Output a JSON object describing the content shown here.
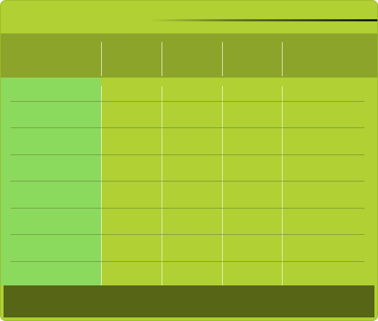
{
  "table": {
    "title": "",
    "column_headers": [
      "",
      "",
      "",
      "",
      ""
    ],
    "rows": [
      [
        "",
        "",
        "",
        "",
        ""
      ],
      [
        "",
        "",
        "",
        "",
        ""
      ],
      [
        "",
        "",
        "",
        "",
        ""
      ],
      [
        "",
        "",
        "",
        "",
        ""
      ],
      [
        "",
        "",
        "",
        "",
        ""
      ],
      [
        "",
        "",
        "",
        "",
        ""
      ],
      [
        "",
        "",
        "",
        "",
        ""
      ]
    ],
    "footer": ""
  },
  "colors": {
    "card": "#b0d033",
    "header_band": "#8da42a",
    "row_header_column": "#8bd95d",
    "footer_band": "#566516",
    "grid_line_vertical": "#eef5cf",
    "grid_line_horizontal": "#6c8e3a",
    "title_rule": "#111a08"
  }
}
